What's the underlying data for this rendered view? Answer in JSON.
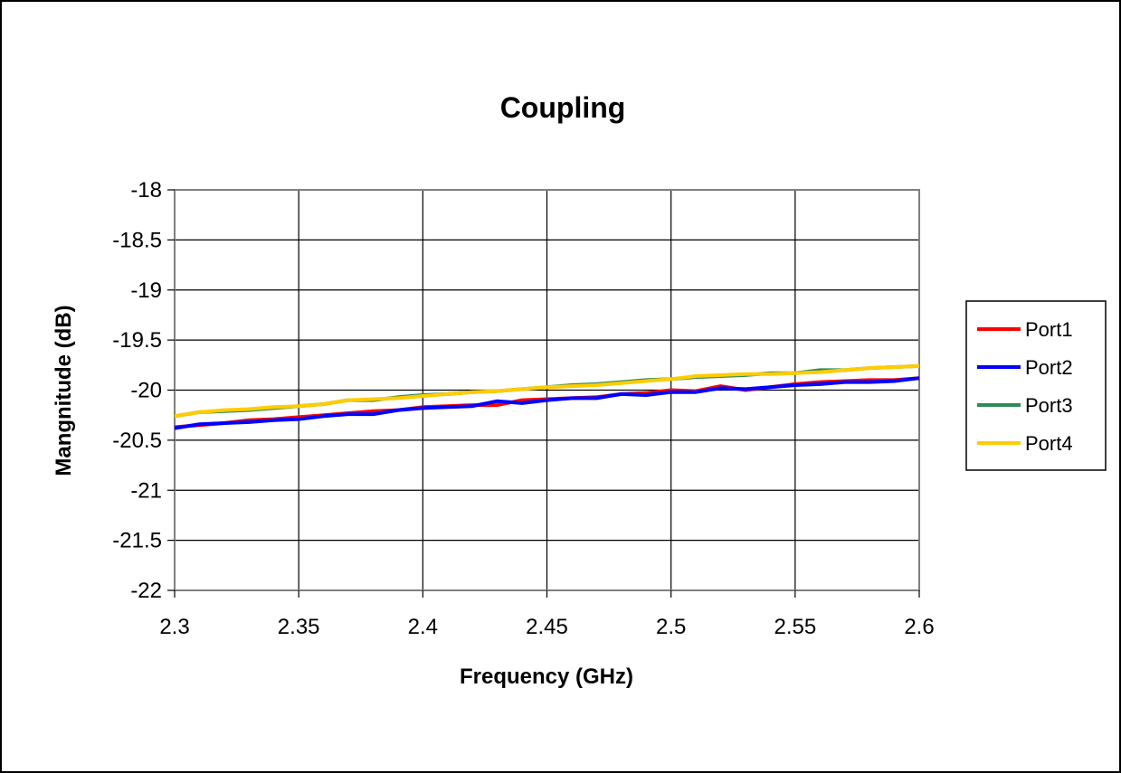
{
  "chart_data": {
    "type": "line",
    "title": "Coupling",
    "xlabel": "Frequency (GHz)",
    "ylabel": "Mangnitude (dB)",
    "xlim": [
      2.3,
      2.6
    ],
    "ylim": [
      -22,
      -18
    ],
    "x_ticks": [
      "2.3",
      "2.35",
      "2.4",
      "2.45",
      "2.5",
      "2.55",
      "2.6"
    ],
    "y_ticks": [
      "-18",
      "-18.5",
      "-19",
      "-19.5",
      "-20",
      "-20.5",
      "-21",
      "-21.5",
      "-22"
    ],
    "grid": true,
    "legend_position": "right",
    "x": [
      2.3,
      2.31,
      2.32,
      2.33,
      2.34,
      2.35,
      2.36,
      2.37,
      2.38,
      2.39,
      2.4,
      2.41,
      2.42,
      2.43,
      2.44,
      2.45,
      2.46,
      2.47,
      2.48,
      2.49,
      2.5,
      2.51,
      2.52,
      2.53,
      2.54,
      2.55,
      2.56,
      2.57,
      2.58,
      2.59,
      2.6
    ],
    "series": [
      {
        "name": "Port1",
        "color": "#ff0000",
        "values": [
          -20.37,
          -20.35,
          -20.33,
          -20.3,
          -20.29,
          -20.27,
          -20.25,
          -20.23,
          -20.21,
          -20.2,
          -20.17,
          -20.16,
          -20.15,
          -20.15,
          -20.1,
          -20.09,
          -20.08,
          -20.07,
          -20.04,
          -20.03,
          -20.0,
          -20.01,
          -19.96,
          -20.0,
          -19.97,
          -19.94,
          -19.92,
          -19.91,
          -19.9,
          -19.9,
          -19.88
        ]
      },
      {
        "name": "Port2",
        "color": "#0000ff",
        "values": [
          -20.38,
          -20.34,
          -20.33,
          -20.32,
          -20.3,
          -20.29,
          -20.26,
          -20.24,
          -20.24,
          -20.2,
          -20.18,
          -20.17,
          -20.16,
          -20.11,
          -20.13,
          -20.1,
          -20.08,
          -20.08,
          -20.04,
          -20.05,
          -20.02,
          -20.02,
          -19.98,
          -19.99,
          -19.97,
          -19.95,
          -19.94,
          -19.92,
          -19.92,
          -19.91,
          -19.88
        ]
      },
      {
        "name": "Port3",
        "color": "#2e8b57",
        "values": [
          -20.26,
          -20.22,
          -20.21,
          -20.2,
          -20.18,
          -20.16,
          -20.14,
          -20.1,
          -20.1,
          -20.07,
          -20.05,
          -20.04,
          -20.02,
          -20.01,
          -19.99,
          -19.97,
          -19.95,
          -19.94,
          -19.92,
          -19.9,
          -19.89,
          -19.87,
          -19.86,
          -19.85,
          -19.83,
          -19.83,
          -19.8,
          -19.8,
          -19.78,
          -19.77,
          -19.76
        ]
      },
      {
        "name": "Port4",
        "color": "#ffcc00",
        "values": [
          -20.26,
          -20.22,
          -20.2,
          -20.19,
          -20.17,
          -20.16,
          -20.14,
          -20.1,
          -20.09,
          -20.08,
          -20.06,
          -20.04,
          -20.02,
          -20.01,
          -19.99,
          -19.97,
          -19.96,
          -19.95,
          -19.93,
          -19.91,
          -19.89,
          -19.86,
          -19.85,
          -19.84,
          -19.84,
          -19.83,
          -19.82,
          -19.8,
          -19.78,
          -19.77,
          -19.76
        ]
      }
    ]
  }
}
